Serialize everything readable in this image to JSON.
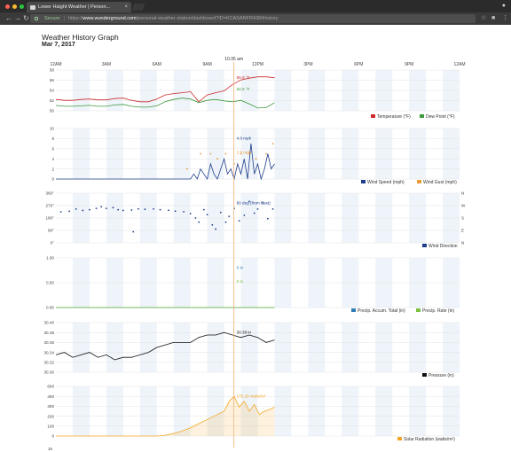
{
  "browser": {
    "tab_title": "Lower Haight Weather | Person...",
    "secure_label": "Secure",
    "url_scheme": "https://",
    "url_host": "www.wunderground.com",
    "url_path": "/personal-weather-station/dashboard?ID=KCASANFR438#history"
  },
  "page": {
    "title": "Weather History Graph",
    "date": "Mar 7, 2017"
  },
  "cursor_time": "10:35 am",
  "time_ticks": [
    "12AM",
    "3AM",
    "6AM",
    "9AM",
    "12PM",
    "3PM",
    "6PM",
    "9PM",
    "12AM"
  ],
  "chart_data": [
    {
      "type": "line",
      "name": "temperature",
      "ylim": [
        49,
        58
      ],
      "y_ticks": [
        "58",
        "56",
        "54",
        "52",
        "50"
      ],
      "x_hours": [
        0,
        0.5,
        1,
        1.5,
        2,
        2.5,
        3,
        3.5,
        4,
        4.5,
        5,
        5.5,
        6,
        6.5,
        7,
        7.5,
        8,
        8.5,
        9,
        9.5,
        10,
        10.5,
        11,
        11.5,
        12,
        12.5,
        13
      ],
      "series": [
        {
          "name": "Temperature (°F)",
          "color": "#cc2a2a",
          "values": [
            51.5,
            51.3,
            51.3,
            51.5,
            51.6,
            51.4,
            51.4,
            51.7,
            51.8,
            51.3,
            51.0,
            51.0,
            51.6,
            52.5,
            52.8,
            53.0,
            53.2,
            51.0,
            52.5,
            53.0,
            53.4,
            54.8,
            55.8,
            56.2,
            56.5,
            56.5,
            56.3
          ]
        },
        {
          "name": "Dew Point (°F)",
          "color": "#3d9a3d",
          "values": [
            50.2,
            50.0,
            50.0,
            50.1,
            50.2,
            50.0,
            50.0,
            50.3,
            50.4,
            50.0,
            49.8,
            49.8,
            50.1,
            51.0,
            51.5,
            51.8,
            51.6,
            50.8,
            51.3,
            51.5,
            51.2,
            51.0,
            51.3,
            50.5,
            49.6,
            49.7,
            50.8
          ]
        }
      ],
      "annotations": [
        "55.9 °F",
        "52.5 °F"
      ]
    },
    {
      "type": "line",
      "name": "wind",
      "ylim": [
        0,
        10
      ],
      "y_ticks": [
        "10",
        "8",
        "6",
        "4",
        "2",
        "0"
      ],
      "x_hours": [
        0,
        8,
        8.2,
        8.4,
        8.6,
        8.8,
        9.0,
        9.2,
        9.4,
        9.6,
        9.8,
        10.0,
        10.2,
        10.4,
        10.6,
        10.8,
        11.0,
        11.2,
        11.4,
        11.6,
        11.8,
        12.0,
        12.2,
        12.4,
        12.6,
        12.8,
        13
      ],
      "series": [
        {
          "name": "Wind Speed (mph)",
          "color": "#1f3d8a",
          "values": [
            0,
            0,
            1,
            0,
            2,
            1,
            0,
            3,
            1,
            0,
            2,
            4,
            1,
            2,
            0,
            3,
            1,
            4,
            0,
            7,
            1,
            3,
            0,
            2,
            5,
            2,
            3
          ]
        },
        {
          "name": "Wind Gust (mph)",
          "color": "#e69a3c",
          "gust_hours": [
            7.8,
            8.6,
            9.2,
            9.6,
            10.1,
            10.6,
            11.0,
            11.5,
            11.9,
            12.5,
            12.9
          ],
          "values": [
            2,
            5,
            5,
            4,
            5,
            3,
            5,
            5,
            4,
            5,
            7
          ]
        }
      ],
      "annotations": [
        "4.0 mph",
        "2.5 mph"
      ]
    },
    {
      "type": "scatter",
      "name": "wind-direction",
      "ylim": [
        0,
        360
      ],
      "y_ticks": [
        "360°",
        "270°",
        "180°",
        "90°",
        "0°"
      ],
      "right_ticks": [
        "N",
        "W",
        "S",
        "E",
        "N"
      ],
      "series": [
        {
          "name": "Wind Direction",
          "color": "#1f3d8a",
          "x_hours": [
            0.3,
            0.8,
            1.2,
            1.6,
            2.0,
            2.4,
            2.7,
            3.0,
            3.4,
            3.7,
            4.0,
            4.5,
            4.9,
            5.3,
            5.8,
            6.2,
            6.7,
            7.1,
            7.6,
            8.0,
            8.3,
            8.5,
            8.8,
            9.0,
            9.3,
            9.5,
            9.8,
            10.1,
            10.3,
            10.6,
            10.9,
            11.2,
            11.5,
            11.8,
            12.0,
            12.3,
            12.6,
            12.9,
            4.6
          ],
          "values": [
            225,
            230,
            245,
            235,
            240,
            250,
            262,
            250,
            255,
            240,
            235,
            238,
            246,
            243,
            246,
            240,
            236,
            230,
            226,
            212,
            180,
            150,
            240,
            205,
            130,
            100,
            220,
            150,
            192,
            250,
            160,
            200,
            300,
            215,
            245,
            290,
            175,
            245,
            80
          ]
        }
      ],
      "annotations": [
        "80 deg (from East)"
      ]
    },
    {
      "type": "line",
      "name": "precipitation",
      "ylim": [
        0,
        1
      ],
      "y_ticks": [
        "1.00",
        "0.50",
        "0.00"
      ],
      "series": [
        {
          "name": "Precip. Accum. Total (in)",
          "color": "#2f7bb5",
          "x_hours": [
            0,
            13
          ],
          "values": [
            0,
            0
          ]
        },
        {
          "name": "Precip. Rate (in)",
          "color": "#7bc043",
          "x_hours": [
            0,
            13
          ],
          "values": [
            0,
            0
          ]
        }
      ],
      "annotations": [
        "0 in",
        "0 in"
      ]
    },
    {
      "type": "line",
      "name": "pressure",
      "ylim": [
        30.3,
        30.4
      ],
      "y_ticks": [
        "30.40",
        "30.38",
        "30.36",
        "30.34",
        "30.32",
        "30.30"
      ],
      "x_hours": [
        0,
        0.5,
        1,
        1.5,
        2,
        2.5,
        3,
        3.5,
        4,
        4.5,
        5,
        5.5,
        6,
        6.5,
        7,
        7.5,
        8,
        8.5,
        9,
        9.5,
        10,
        10.5,
        11,
        11.5,
        12,
        12.5,
        13
      ],
      "series": [
        {
          "name": "Pressure (in)",
          "color": "#111111",
          "values": [
            30.335,
            30.34,
            30.33,
            30.335,
            30.34,
            30.33,
            30.335,
            30.325,
            30.33,
            30.33,
            30.335,
            30.34,
            30.35,
            30.355,
            30.36,
            30.36,
            30.36,
            30.37,
            30.375,
            30.375,
            30.38,
            30.375,
            30.37,
            30.375,
            30.37,
            30.36,
            30.365
          ]
        }
      ],
      "annotations": [
        "30.38 in"
      ]
    },
    {
      "type": "area",
      "name": "solar",
      "ylim": [
        0,
        600
      ],
      "y_ticks": [
        "600",
        "400",
        "300",
        "200",
        "100",
        "0"
      ],
      "x_hours": [
        0,
        6,
        6.5,
        7,
        7.5,
        8,
        8.5,
        9,
        9.5,
        10,
        10.3,
        10.6,
        10.9,
        11.2,
        11.5,
        11.8,
        12.1,
        12.4,
        12.7,
        13
      ],
      "series": [
        {
          "name": "Solar Radiation (watts/m²)",
          "color": "#f5a623",
          "values": [
            0,
            0,
            10,
            30,
            60,
            100,
            150,
            200,
            250,
            300,
            420,
            480,
            350,
            420,
            300,
            380,
            260,
            300,
            320,
            350
          ]
        }
      ],
      "annotations": [
        "175.28 watts/m²"
      ]
    }
  ],
  "bottom_label": "15"
}
